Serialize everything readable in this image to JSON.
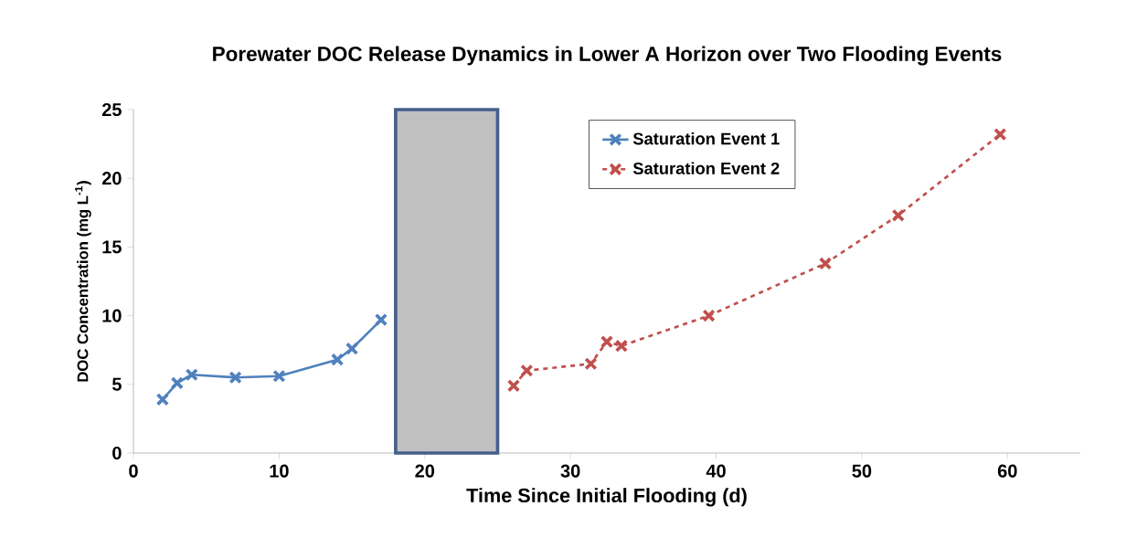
{
  "chart_data": {
    "type": "line",
    "title": "Porewater DOC Release Dynamics in Lower A Horizon over Two Flooding Events",
    "xlabel": "Time Since Initial Flooding (d)",
    "ylabel": "DOC Concentration (mg L$^{-1}$)",
    "series": [
      {
        "name": "Saturation Event 1",
        "color": "#4f81bd",
        "marker": "cross",
        "line_style": "solid",
        "x": [
          2,
          3,
          4,
          7,
          10,
          14,
          15,
          17
        ],
        "values": [
          3.9,
          5.1,
          5.7,
          5.5,
          5.6,
          6.8,
          7.6,
          9.7
        ]
      },
      {
        "name": "Saturation Event 2",
        "color": "#c0504d",
        "marker": "cross",
        "line_style": "dashed",
        "x": [
          26.1,
          27,
          31.4,
          32.5,
          33.5,
          39.5,
          47.5,
          52.5,
          59.5
        ],
        "values": [
          4.9,
          6.0,
          6.5,
          8.1,
          7.8,
          10.0,
          13.8,
          17.3,
          23.2
        ]
      }
    ],
    "bands": [
      {
        "axis": "x",
        "from": 18,
        "to": 25,
        "color": "#c0c0c0"
      }
    ],
    "xlim": [
      0,
      65
    ],
    "ylim": [
      0,
      25
    ],
    "xticks": [
      0,
      10,
      20,
      30,
      40,
      50,
      60
    ],
    "yticks": [
      0,
      5,
      10,
      15,
      20,
      25
    ],
    "grid": false,
    "legend": "top"
  }
}
